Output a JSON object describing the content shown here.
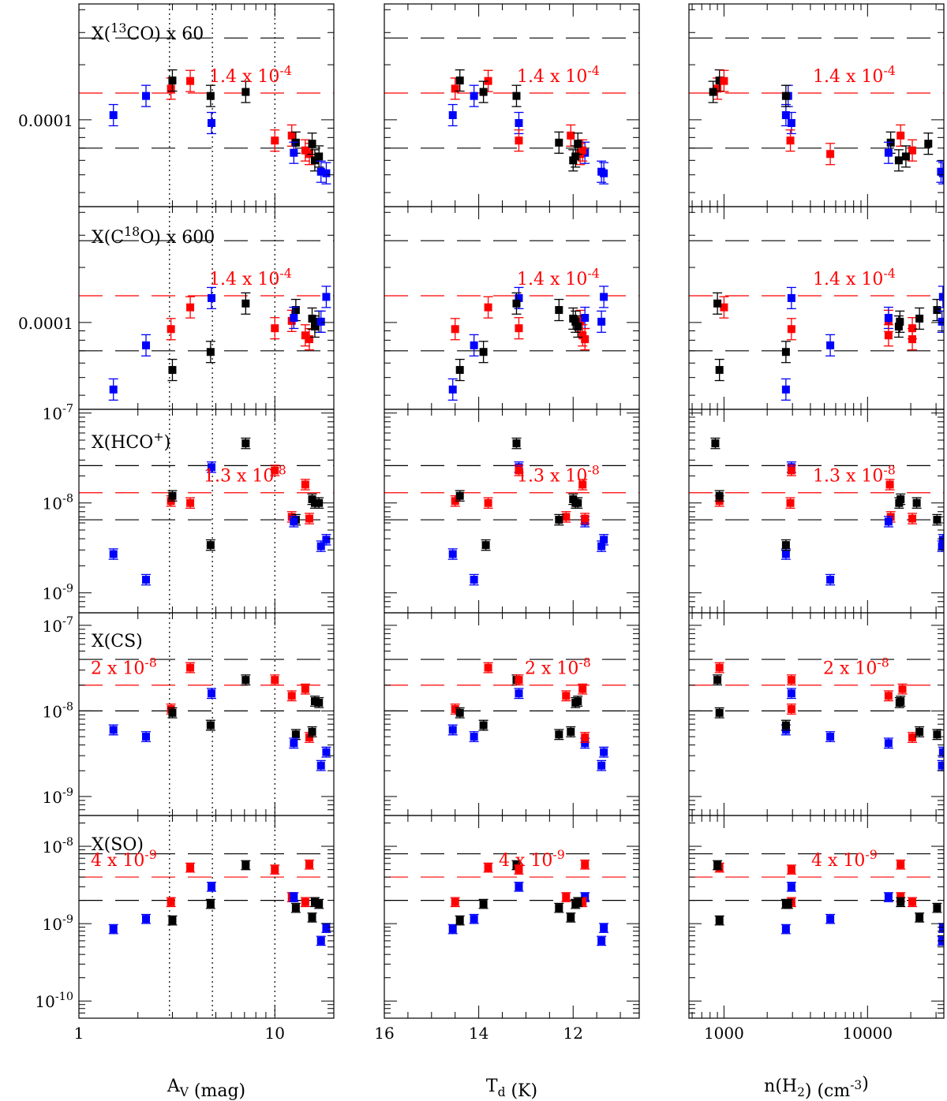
{
  "colors": {
    "red": "#ff0000",
    "blue": "#0000ff",
    "black": "#000000"
  },
  "chart_data": {
    "type": "scatter",
    "log_y": true,
    "columns": [
      {
        "id": "av",
        "xlabel": "A_V (mag)",
        "x_scale": "log",
        "xlim": [
          1,
          20
        ],
        "x_reversed": false,
        "tick_labels": [
          {
            "value": 1,
            "text": "1"
          },
          {
            "value": 10,
            "text": "10"
          }
        ],
        "vlines": [
          2.9,
          4.8,
          10
        ]
      },
      {
        "id": "td",
        "xlabel": "T_d (K)",
        "x_scale": "linear",
        "xlim": [
          16,
          10.6
        ],
        "x_reversed": true,
        "tick_labels": [
          {
            "value": 16,
            "text": "16"
          },
          {
            "value": 14,
            "text": "14"
          },
          {
            "value": 12,
            "text": "12"
          }
        ],
        "vlines": []
      },
      {
        "id": "nh2",
        "xlabel": "n(H_2) (cm^-3)",
        "x_scale": "log",
        "xlim": [
          570,
          34000
        ],
        "x_reversed": false,
        "tick_labels": [
          {
            "value": 1000,
            "text": "1000"
          },
          {
            "value": 10000,
            "text": "10000"
          }
        ],
        "vlines": []
      }
    ],
    "rows": [
      {
        "id": "13co",
        "label": "X(13CO) x 60",
        "ylim": [
          3.35e-05,
          0.00043
        ],
        "y_tick_labels": [
          {
            "value": 0.0001,
            "text": "0.0001"
          }
        ],
        "ref_value": 0.00014,
        "ref_text": "1.4 x 10^-4",
        "band": [
          7e-05,
          0.00028
        ],
        "points": [
          {
            "color": "blue",
            "av": 1.5,
            "td": 14.55,
            "nh2": 2700,
            "y": 0.000106
          },
          {
            "color": "blue",
            "av": 2.2,
            "td": 14.1,
            "nh2": 2800,
            "y": 0.000135
          },
          {
            "color": "red",
            "av": 2.95,
            "td": 14.5,
            "nh2": 900,
            "y": 0.000148
          },
          {
            "color": "black",
            "av": 3.0,
            "td": 14.4,
            "nh2": 930,
            "y": 0.000164
          },
          {
            "color": "red",
            "av": 3.7,
            "td": 13.8,
            "nh2": 1000,
            "y": 0.000163
          },
          {
            "color": "black",
            "av": 4.7,
            "td": 13.2,
            "nh2": 2700,
            "y": 0.000135
          },
          {
            "color": "blue",
            "av": 4.75,
            "td": 13.15,
            "nh2": 2950,
            "y": 9.6e-05
          },
          {
            "color": "black",
            "av": 7.1,
            "td": 13.9,
            "nh2": 840,
            "y": 0.000142
          },
          {
            "color": "red",
            "av": 10.0,
            "td": 13.15,
            "nh2": 2900,
            "y": 7.7e-05
          },
          {
            "color": "red",
            "av": 12.2,
            "td": 12.05,
            "nh2": 17000,
            "y": 8.2e-05
          },
          {
            "color": "black",
            "av": 12.8,
            "td": 12.3,
            "nh2": 14500,
            "y": 7.5e-05
          },
          {
            "color": "blue",
            "av": 12.5,
            "td": 11.75,
            "nh2": 14000,
            "y": 6.6e-05
          },
          {
            "color": "red",
            "av": 14.3,
            "td": 11.8,
            "nh2": 20500,
            "y": 6.8e-05
          },
          {
            "color": "red",
            "av": 15.0,
            "td": 11.85,
            "nh2": 5500,
            "y": 6.5e-05
          },
          {
            "color": "black",
            "av": 15.5,
            "td": 11.9,
            "nh2": 26500,
            "y": 7.4e-05
          },
          {
            "color": "black",
            "av": 16.0,
            "td": 12.0,
            "nh2": 16500,
            "y": 6e-05
          },
          {
            "color": "black",
            "av": 16.8,
            "td": 11.95,
            "nh2": 18500,
            "y": 6.3e-05
          },
          {
            "color": "blue",
            "av": 17.2,
            "td": 11.4,
            "nh2": 32500,
            "y": 5.2e-05
          },
          {
            "color": "blue",
            "av": 18.3,
            "td": 11.35,
            "nh2": 33500,
            "y": 5.1e-05
          }
        ]
      },
      {
        "id": "c18o",
        "label": "X(C18O) x 600",
        "ylim": [
          3.35e-05,
          0.00043
        ],
        "y_tick_labels": [
          {
            "value": 0.0001,
            "text": "0.0001"
          }
        ],
        "ref_value": 0.00014,
        "ref_text": "1.4 x 10^-4",
        "band": [
          7e-05,
          0.00028
        ],
        "points": [
          {
            "color": "blue",
            "av": 1.5,
            "td": 14.55,
            "nh2": 2700,
            "y": 4.3e-05
          },
          {
            "color": "blue",
            "av": 2.2,
            "td": 14.1,
            "nh2": 5500,
            "y": 7.5e-05
          },
          {
            "color": "red",
            "av": 2.95,
            "td": 14.5,
            "nh2": 2950,
            "y": 9.2e-05
          },
          {
            "color": "black",
            "av": 3.0,
            "td": 14.4,
            "nh2": 930,
            "y": 5.5e-05
          },
          {
            "color": "red",
            "av": 3.7,
            "td": 13.8,
            "nh2": 1000,
            "y": 0.000121
          },
          {
            "color": "black",
            "av": 4.7,
            "td": 13.9,
            "nh2": 2700,
            "y": 6.9e-05
          },
          {
            "color": "blue",
            "av": 4.75,
            "td": 13.15,
            "nh2": 2950,
            "y": 0.000136
          },
          {
            "color": "black",
            "av": 7.1,
            "td": 13.2,
            "nh2": 900,
            "y": 0.000127
          },
          {
            "color": "red",
            "av": 10.0,
            "td": 13.15,
            "nh2": 20500,
            "y": 9.3e-05
          },
          {
            "color": "red",
            "av": 12.2,
            "td": 11.85,
            "nh2": 14000,
            "y": 0.000102
          },
          {
            "color": "black",
            "av": 12.8,
            "td": 12.3,
            "nh2": 30500,
            "y": 0.000117
          },
          {
            "color": "blue",
            "av": 12.5,
            "td": 11.75,
            "nh2": 14000,
            "y": 0.000106
          },
          {
            "color": "red",
            "av": 14.3,
            "td": 11.8,
            "nh2": 14000,
            "y": 8.5e-05
          },
          {
            "color": "red",
            "av": 15.0,
            "td": 11.75,
            "nh2": 20500,
            "y": 8.1e-05
          },
          {
            "color": "black",
            "av": 15.5,
            "td": 12.0,
            "nh2": 23000,
            "y": 0.000105
          },
          {
            "color": "black",
            "av": 16.0,
            "td": 11.9,
            "nh2": 16500,
            "y": 9.5e-05
          },
          {
            "color": "black",
            "av": 16.8,
            "td": 11.95,
            "nh2": 16800,
            "y": 0.000101
          },
          {
            "color": "blue",
            "av": 17.2,
            "td": 11.4,
            "nh2": 33000,
            "y": 0.000101
          },
          {
            "color": "blue",
            "av": 18.3,
            "td": 11.35,
            "nh2": 33500,
            "y": 0.000138
          }
        ]
      },
      {
        "id": "hco",
        "label": "X(HCO+)",
        "ylim": [
          6e-10,
          1.1e-07
        ],
        "y_tick_labels": [
          {
            "value": 1e-07,
            "text": "10^-7"
          },
          {
            "value": 1e-08,
            "text": "10^-8"
          },
          {
            "value": 1e-09,
            "text": "10^-9"
          }
        ],
        "ref_value": 1.3e-08,
        "ref_text": "1.3 x 10^-8",
        "band": [
          6.5e-09,
          2.6e-08
        ],
        "points": [
          {
            "color": "blue",
            "av": 1.5,
            "td": 14.55,
            "nh2": 2700,
            "y": 2.7e-09
          },
          {
            "color": "blue",
            "av": 2.2,
            "td": 14.1,
            "nh2": 5500,
            "y": 1.4e-09
          },
          {
            "color": "red",
            "av": 2.95,
            "td": 14.5,
            "nh2": 930,
            "y": 1.05e-08
          },
          {
            "color": "black",
            "av": 3.0,
            "td": 14.4,
            "nh2": 930,
            "y": 1.2e-08
          },
          {
            "color": "red",
            "av": 3.7,
            "td": 13.8,
            "nh2": 2900,
            "y": 1e-08
          },
          {
            "color": "black",
            "av": 4.7,
            "td": 13.85,
            "nh2": 2700,
            "y": 3.4e-09
          },
          {
            "color": "blue",
            "av": 4.75,
            "td": 13.15,
            "nh2": 2950,
            "y": 2.5e-08
          },
          {
            "color": "black",
            "av": 7.1,
            "td": 13.2,
            "nh2": 870,
            "y": 4.6e-08
          },
          {
            "color": "red",
            "av": 10.0,
            "td": 13.15,
            "nh2": 2950,
            "y": 2.3e-08
          },
          {
            "color": "red",
            "av": 12.2,
            "td": 12.15,
            "nh2": 14500,
            "y": 7e-09
          },
          {
            "color": "black",
            "av": 12.8,
            "td": 12.3,
            "nh2": 30500,
            "y": 6.5e-09
          },
          {
            "color": "blue",
            "av": 12.5,
            "td": 11.75,
            "nh2": 14000,
            "y": 6.2e-09
          },
          {
            "color": "red",
            "av": 14.3,
            "td": 11.8,
            "nh2": 14300,
            "y": 1.6e-08
          },
          {
            "color": "red",
            "av": 15.0,
            "td": 11.75,
            "nh2": 20500,
            "y": 6.7e-09
          },
          {
            "color": "black",
            "av": 15.5,
            "td": 12.0,
            "nh2": 17000,
            "y": 1.1e-08
          },
          {
            "color": "black",
            "av": 16.0,
            "td": 11.9,
            "nh2": 22000,
            "y": 1e-08
          },
          {
            "color": "black",
            "av": 16.8,
            "td": 11.95,
            "nh2": 16600,
            "y": 1e-08
          },
          {
            "color": "blue",
            "av": 17.2,
            "td": 11.4,
            "nh2": 33000,
            "y": 3.3e-09
          },
          {
            "color": "blue",
            "av": 18.3,
            "td": 11.35,
            "nh2": 33500,
            "y": 3.9e-09
          }
        ]
      },
      {
        "id": "cs",
        "label": "X(CS)",
        "ylim": [
          6e-10,
          1.4e-07
        ],
        "y_tick_labels": [
          {
            "value": 1e-07,
            "text": "10^-7"
          },
          {
            "value": 1e-08,
            "text": "10^-8"
          },
          {
            "value": 1e-09,
            "text": "10^-9"
          }
        ],
        "ref_value": 2e-08,
        "ref_text": "2 x 10^-8",
        "band": [
          1e-08,
          4e-08
        ],
        "points": [
          {
            "color": "blue",
            "av": 1.5,
            "td": 14.55,
            "nh2": 2700,
            "y": 6e-09
          },
          {
            "color": "blue",
            "av": 2.2,
            "td": 14.1,
            "nh2": 5500,
            "y": 5e-09
          },
          {
            "color": "red",
            "av": 2.95,
            "td": 14.5,
            "nh2": 2950,
            "y": 1.05e-08
          },
          {
            "color": "black",
            "av": 3.0,
            "td": 14.4,
            "nh2": 930,
            "y": 9.5e-09
          },
          {
            "color": "red",
            "av": 3.7,
            "td": 13.8,
            "nh2": 930,
            "y": 3.2e-08
          },
          {
            "color": "black",
            "av": 4.7,
            "td": 13.9,
            "nh2": 2700,
            "y": 6.8e-09
          },
          {
            "color": "blue",
            "av": 4.75,
            "td": 13.15,
            "nh2": 2950,
            "y": 1.6e-08
          },
          {
            "color": "black",
            "av": 7.1,
            "td": 13.2,
            "nh2": 900,
            "y": 2.3e-08
          },
          {
            "color": "red",
            "av": 10.0,
            "td": 13.15,
            "nh2": 2950,
            "y": 2.3e-08
          },
          {
            "color": "red",
            "av": 12.2,
            "td": 12.15,
            "nh2": 14000,
            "y": 1.5e-08
          },
          {
            "color": "black",
            "av": 12.8,
            "td": 12.3,
            "nh2": 30500,
            "y": 5.3e-09
          },
          {
            "color": "blue",
            "av": 12.5,
            "td": 11.75,
            "nh2": 14000,
            "y": 4.2e-09
          },
          {
            "color": "red",
            "av": 14.3,
            "td": 11.8,
            "nh2": 17500,
            "y": 1.8e-08
          },
          {
            "color": "red",
            "av": 15.0,
            "td": 11.75,
            "nh2": 20500,
            "y": 4.9e-09
          },
          {
            "color": "black",
            "av": 15.5,
            "td": 12.05,
            "nh2": 23000,
            "y": 5.7e-09
          },
          {
            "color": "black",
            "av": 16.0,
            "td": 11.9,
            "nh2": 17000,
            "y": 1.3e-08
          },
          {
            "color": "black",
            "av": 16.8,
            "td": 11.95,
            "nh2": 16700,
            "y": 1.25e-08
          },
          {
            "color": "blue",
            "av": 17.2,
            "td": 11.4,
            "nh2": 33000,
            "y": 2.3e-09
          },
          {
            "color": "blue",
            "av": 18.3,
            "td": 11.35,
            "nh2": 33500,
            "y": 3.3e-09
          }
        ]
      },
      {
        "id": "so",
        "label": "X(SO)",
        "ylim": [
          6e-11,
          2.5e-08
        ],
        "y_tick_labels": [
          {
            "value": 1e-08,
            "text": "10^-8"
          },
          {
            "value": 1e-09,
            "text": "10^-9"
          },
          {
            "value": 1e-10,
            "text": "10^-10"
          }
        ],
        "ref_value": 4e-09,
        "ref_text": "4 x 10^-9",
        "band": [
          2e-09,
          8e-09
        ],
        "points": [
          {
            "color": "blue",
            "av": 1.5,
            "td": 14.55,
            "nh2": 2700,
            "y": 8.5e-10
          },
          {
            "color": "blue",
            "av": 2.2,
            "td": 14.1,
            "nh2": 5500,
            "y": 1.15e-09
          },
          {
            "color": "red",
            "av": 2.95,
            "td": 14.5,
            "nh2": 2950,
            "y": 1.9e-09
          },
          {
            "color": "black",
            "av": 3.0,
            "td": 14.4,
            "nh2": 930,
            "y": 1.1e-09
          },
          {
            "color": "red",
            "av": 3.7,
            "td": 13.8,
            "nh2": 930,
            "y": 5.3e-09
          },
          {
            "color": "black",
            "av": 4.7,
            "td": 13.9,
            "nh2": 2700,
            "y": 1.8e-09
          },
          {
            "color": "blue",
            "av": 4.75,
            "td": 13.15,
            "nh2": 2950,
            "y": 3e-09
          },
          {
            "color": "black",
            "av": 7.1,
            "td": 13.2,
            "nh2": 900,
            "y": 5.7e-09
          },
          {
            "color": "red",
            "av": 10.0,
            "td": 13.15,
            "nh2": 2950,
            "y": 5e-09
          },
          {
            "color": "red",
            "av": 12.2,
            "td": 12.15,
            "nh2": 17000,
            "y": 2.2e-09
          },
          {
            "color": "black",
            "av": 12.8,
            "td": 12.3,
            "nh2": 30500,
            "y": 1.6e-09
          },
          {
            "color": "blue",
            "av": 12.5,
            "td": 11.75,
            "nh2": 14000,
            "y": 2.2e-09
          },
          {
            "color": "red",
            "av": 14.3,
            "td": 11.8,
            "nh2": 20500,
            "y": 1.9e-09
          },
          {
            "color": "red",
            "av": 15.0,
            "td": 11.75,
            "nh2": 17000,
            "y": 5.8e-09
          },
          {
            "color": "black",
            "av": 15.5,
            "td": 12.05,
            "nh2": 23000,
            "y": 1.2e-09
          },
          {
            "color": "black",
            "av": 16.0,
            "td": 11.9,
            "nh2": 17000,
            "y": 1.9e-09
          },
          {
            "color": "black",
            "av": 16.8,
            "td": 11.95,
            "nh2": 2800,
            "y": 1.8e-09
          },
          {
            "color": "blue",
            "av": 17.2,
            "td": 11.4,
            "nh2": 33000,
            "y": 6e-10
          },
          {
            "color": "blue",
            "av": 18.3,
            "td": 11.35,
            "nh2": 33500,
            "y": 8.8e-10
          }
        ]
      }
    ]
  }
}
